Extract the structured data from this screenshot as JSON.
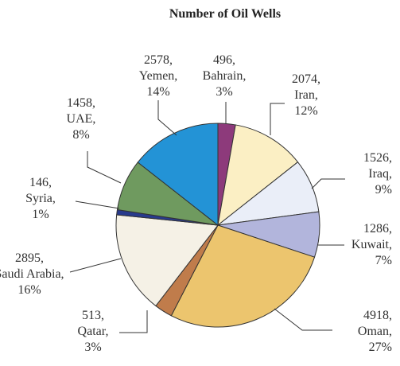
{
  "chart_data": {
    "type": "pie",
    "title": "Number of Oil Wells",
    "slices": [
      {
        "label": "Bahrain",
        "value": 496,
        "percent_label": "3%",
        "color": "#8d3a7b"
      },
      {
        "label": "Iran",
        "value": 2074,
        "percent_label": "12%",
        "color": "#fbefc4"
      },
      {
        "label": "Iraq",
        "value": 1526,
        "percent_label": "9%",
        "color": "#eaeef8"
      },
      {
        "label": "Kuwait",
        "value": 1286,
        "percent_label": "7%",
        "color": "#b2b5dc"
      },
      {
        "label": "Oman",
        "value": 4918,
        "percent_label": "27%",
        "color": "#ecc56e"
      },
      {
        "label": "Qatar",
        "value": 513,
        "percent_label": "3%",
        "color": "#c07c4b"
      },
      {
        "label": "Saudi Arabia",
        "value": 2895,
        "percent_label": "16%",
        "color": "#f5f1e6"
      },
      {
        "label": "Syria",
        "value": 146,
        "percent_label": "1%",
        "color": "#283a8c"
      },
      {
        "label": "UAE",
        "value": 1458,
        "percent_label": "8%",
        "color": "#6f9a5f"
      },
      {
        "label": "Yemen",
        "value": 2578,
        "percent_label": "14%",
        "color": "#2393d6"
      }
    ]
  }
}
